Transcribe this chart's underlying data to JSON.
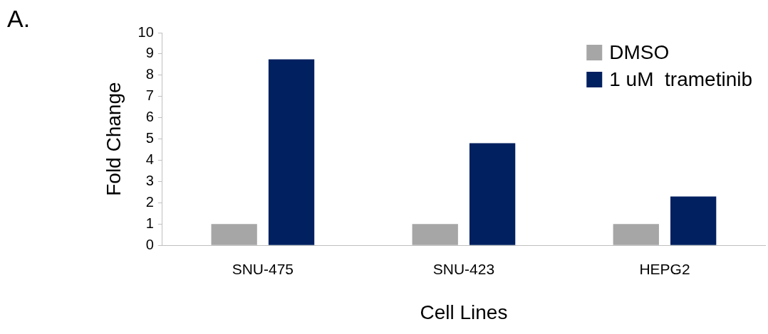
{
  "chart_data": {
    "type": "bar",
    "annotations": [
      "A."
    ],
    "xlabel": "Cell Lines",
    "ylabel": "Fold Change",
    "categories": [
      "SNU-475",
      "SNU-423",
      "HEPG2"
    ],
    "series": [
      {
        "name": "DMSO",
        "color": "#a6a6a6",
        "values": [
          1,
          1,
          1
        ]
      },
      {
        "name": "1 uM  trametinib",
        "color": "#002060",
        "values": [
          8.75,
          4.8,
          2.3
        ]
      }
    ],
    "ylim": [
      0,
      10
    ],
    "yticks": [
      0,
      1,
      2,
      3,
      4,
      5,
      6,
      7,
      8,
      9,
      10
    ],
    "grid": false,
    "legend": "top right"
  }
}
